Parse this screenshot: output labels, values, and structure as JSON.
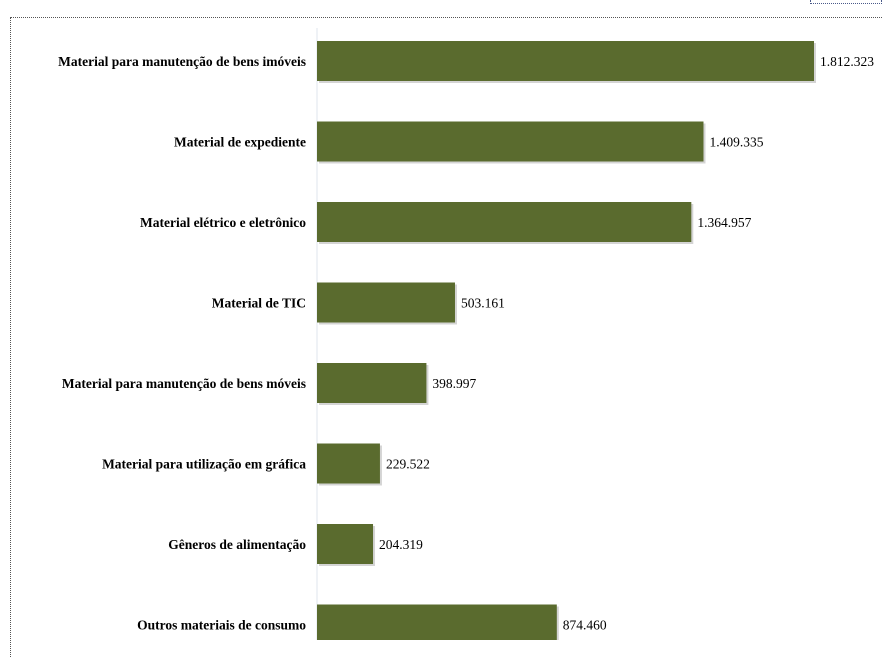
{
  "chart_data": {
    "type": "bar",
    "orientation": "horizontal",
    "categories": [
      "Material para manutenção de bens imóveis",
      "Material de expediente",
      "Material elétrico e eletrônico",
      "Material de TIC",
      "Material para manutenção de bens móveis",
      "Material para utilização em gráfica",
      "Gêneros de alimentação",
      "Outros materiais de consumo"
    ],
    "values": [
      1812323,
      1409335,
      1364957,
      503161,
      398997,
      229522,
      204319,
      874460
    ],
    "value_labels": [
      "1.812.323",
      "1.409.335",
      "1.364.957",
      "503.161",
      "398.997",
      "229.522",
      "204.319",
      "874.460"
    ],
    "xlim": [
      0,
      1812323
    ],
    "bar_color": "#5a6b2e",
    "grid": false,
    "legend": "none"
  }
}
